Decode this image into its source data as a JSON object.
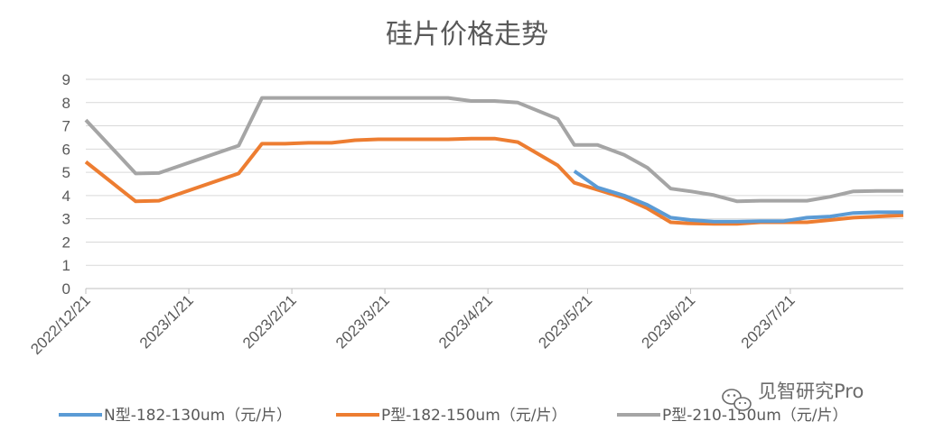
{
  "chart_data": {
    "type": "line",
    "title": "硅片价格走势",
    "xlabel": "",
    "ylabel": "",
    "ylim": [
      0,
      9
    ],
    "yticks": [
      "0",
      "1",
      "2",
      "3",
      "4",
      "5",
      "6",
      "7",
      "8",
      "9"
    ],
    "xticks": [
      "2022/12/21",
      "2023/1/21",
      "2023/2/21",
      "2023/3/21",
      "2023/4/21",
      "2023/5/21",
      "2023/6/21",
      "2023/7/21"
    ],
    "xrange": [
      "2022/12/21",
      "2023/8/24"
    ],
    "grid": "horizontal",
    "legend_position": "bottom",
    "series": [
      {
        "name": "N型-182-130um（元/片）",
        "color": "#5b9bd5",
        "points": [
          [
            "2023/5/17",
            5.05
          ],
          [
            "2023/5/24",
            4.35
          ],
          [
            "2023/6/1",
            4.0
          ],
          [
            "2023/6/8",
            3.6
          ],
          [
            "2023/6/15",
            3.05
          ],
          [
            "2023/6/21",
            2.95
          ],
          [
            "2023/6/28",
            2.88
          ],
          [
            "2023/7/5",
            2.88
          ],
          [
            "2023/7/12",
            2.9
          ],
          [
            "2023/7/19",
            2.9
          ],
          [
            "2023/7/26",
            3.05
          ],
          [
            "2023/8/2",
            3.1
          ],
          [
            "2023/8/9",
            3.25
          ],
          [
            "2023/8/16",
            3.28
          ],
          [
            "2023/8/24",
            3.28
          ]
        ]
      },
      {
        "name": "P型-182-150um（元/片）",
        "color": "#ed7d31",
        "points": [
          [
            "2022/12/21",
            5.45
          ],
          [
            "2023/1/5",
            3.75
          ],
          [
            "2023/1/12",
            3.78
          ],
          [
            "2023/2/5",
            4.95
          ],
          [
            "2023/2/12",
            6.23
          ],
          [
            "2023/2/19",
            6.23
          ],
          [
            "2023/2/26",
            6.27
          ],
          [
            "2023/3/5",
            6.27
          ],
          [
            "2023/3/12",
            6.38
          ],
          [
            "2023/3/19",
            6.42
          ],
          [
            "2023/3/26",
            6.42
          ],
          [
            "2023/4/2",
            6.42
          ],
          [
            "2023/4/9",
            6.42
          ],
          [
            "2023/4/16",
            6.45
          ],
          [
            "2023/4/23",
            6.45
          ],
          [
            "2023/4/30",
            6.3
          ],
          [
            "2023/5/12",
            5.3
          ],
          [
            "2023/5/17",
            4.55
          ],
          [
            "2023/5/24",
            4.25
          ],
          [
            "2023/6/1",
            3.9
          ],
          [
            "2023/6/8",
            3.45
          ],
          [
            "2023/6/15",
            2.85
          ],
          [
            "2023/6/21",
            2.8
          ],
          [
            "2023/6/28",
            2.78
          ],
          [
            "2023/7/5",
            2.78
          ],
          [
            "2023/7/12",
            2.85
          ],
          [
            "2023/7/19",
            2.85
          ],
          [
            "2023/7/26",
            2.85
          ],
          [
            "2023/8/2",
            2.95
          ],
          [
            "2023/8/9",
            3.05
          ],
          [
            "2023/8/16",
            3.1
          ],
          [
            "2023/8/24",
            3.15
          ]
        ]
      },
      {
        "name": "P型-210-150um（元/片）",
        "color": "#a5a5a5",
        "points": [
          [
            "2022/12/21",
            7.25
          ],
          [
            "2023/1/5",
            4.95
          ],
          [
            "2023/1/12",
            4.97
          ],
          [
            "2023/2/5",
            6.15
          ],
          [
            "2023/2/12",
            8.2
          ],
          [
            "2023/2/19",
            8.2
          ],
          [
            "2023/2/26",
            8.2
          ],
          [
            "2023/3/5",
            8.2
          ],
          [
            "2023/3/12",
            8.2
          ],
          [
            "2023/3/19",
            8.2
          ],
          [
            "2023/3/26",
            8.2
          ],
          [
            "2023/4/2",
            8.2
          ],
          [
            "2023/4/9",
            8.2
          ],
          [
            "2023/4/16",
            8.07
          ],
          [
            "2023/4/23",
            8.07
          ],
          [
            "2023/4/30",
            8.0
          ],
          [
            "2023/5/12",
            7.3
          ],
          [
            "2023/5/17",
            6.18
          ],
          [
            "2023/5/24",
            6.18
          ],
          [
            "2023/6/1",
            5.75
          ],
          [
            "2023/6/8",
            5.2
          ],
          [
            "2023/6/15",
            4.3
          ],
          [
            "2023/6/21",
            4.18
          ],
          [
            "2023/6/28",
            4.02
          ],
          [
            "2023/7/5",
            3.75
          ],
          [
            "2023/7/12",
            3.78
          ],
          [
            "2023/7/19",
            3.78
          ],
          [
            "2023/7/26",
            3.78
          ],
          [
            "2023/8/2",
            3.95
          ],
          [
            "2023/8/9",
            4.18
          ],
          [
            "2023/8/16",
            4.2
          ],
          [
            "2023/8/24",
            4.2
          ]
        ]
      }
    ]
  },
  "watermark": {
    "icon": "wechat-icon",
    "text": "见智研究Pro"
  }
}
